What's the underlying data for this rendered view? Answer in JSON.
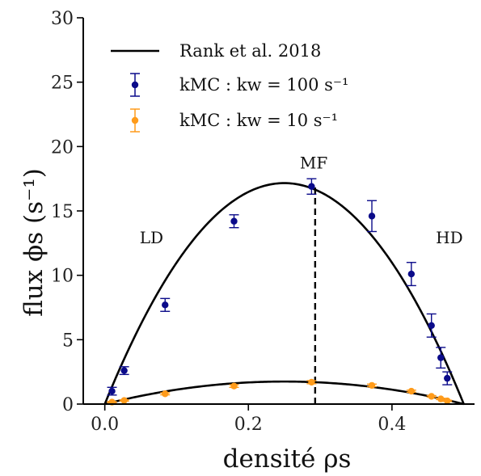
{
  "chart_data": {
    "type": "scatter",
    "xlabel": "densité ρs",
    "ylabel": "flux ϕs (s⁻¹)",
    "xlim": [
      -0.03,
      0.515
    ],
    "ylim": [
      0,
      30
    ],
    "xticks": [
      0.0,
      0.2,
      0.4
    ],
    "xtick_labels": [
      "0.0",
      "0.2",
      "0.4"
    ],
    "yticks": [
      0,
      5,
      10,
      15,
      20,
      25,
      30
    ],
    "ytick_labels": [
      "0",
      "5",
      "10",
      "15",
      "20",
      "25",
      "30"
    ],
    "grid": false,
    "legend_position": "top-left",
    "legend": [
      {
        "label": "Rank et al. 2018",
        "kind": "line",
        "color": "#000000"
      },
      {
        "label": "kMC : kw = 100 s⁻¹",
        "kind": "errorbar",
        "color": "#0b0b8a"
      },
      {
        "label": "kMC : kw = 10 s⁻¹",
        "kind": "errorbar",
        "color": "#ff9b1a"
      }
    ],
    "annotations": [
      {
        "text": "LD",
        "x": 0.065,
        "y": 12.5
      },
      {
        "text": "MF",
        "x": 0.291,
        "y": 18.3
      },
      {
        "text": "HD",
        "x": 0.48,
        "y": 12.5
      }
    ],
    "vline": {
      "x": 0.293,
      "y_from": 0,
      "y_to": 17.1,
      "style": "dashed"
    },
    "curves": [
      {
        "name": "Rank et al. 2018 (kw = 100)",
        "amplitude": 17.16,
        "x_end": 0.5
      },
      {
        "name": "Rank et al. 2018 (kw = 10)",
        "amplitude": 1.75,
        "x_end": 0.5
      }
    ],
    "series": [
      {
        "name": "kMC : kw = 100 s⁻¹",
        "color": "#0b0b8a",
        "x": [
          0.01,
          0.027,
          0.084,
          0.18,
          0.288,
          0.372,
          0.427,
          0.455,
          0.468,
          0.477
        ],
        "y": [
          1.0,
          2.6,
          7.7,
          14.2,
          16.9,
          14.6,
          10.1,
          6.1,
          3.6,
          2.0
        ],
        "yerr": [
          0.3,
          0.3,
          0.5,
          0.5,
          0.6,
          1.2,
          0.9,
          0.9,
          0.8,
          0.5
        ]
      },
      {
        "name": "kMC : kw = 10 s⁻¹",
        "color": "#ff9b1a",
        "x": [
          0.01,
          0.027,
          0.084,
          0.18,
          0.288,
          0.372,
          0.427,
          0.455,
          0.468,
          0.477
        ],
        "y": [
          0.15,
          0.28,
          0.8,
          1.4,
          1.7,
          1.45,
          1.0,
          0.6,
          0.4,
          0.25
        ],
        "yerr": [
          0.05,
          0.05,
          0.08,
          0.1,
          0.12,
          0.1,
          0.08,
          0.06,
          0.05,
          0.05
        ]
      }
    ]
  }
}
